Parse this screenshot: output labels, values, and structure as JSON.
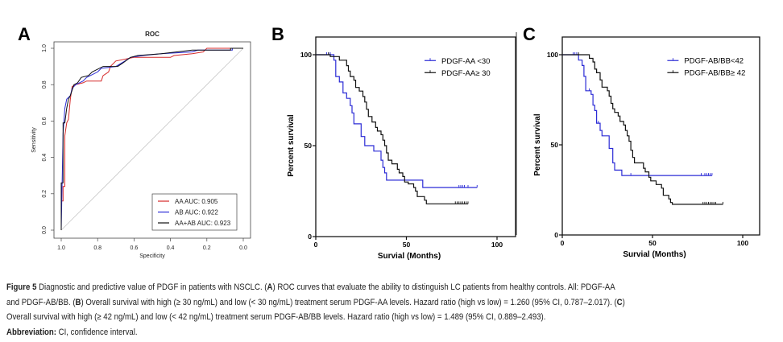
{
  "panels": {
    "A": {
      "letter": "A"
    },
    "B": {
      "letter": "B"
    },
    "C": {
      "letter": "C"
    }
  },
  "colors": {
    "red": "#d62a2a",
    "blue": "#2b2bd6",
    "black": "#111111",
    "diag": "#c8c8c8"
  },
  "chart_data": [
    {
      "type": "line",
      "title": "ROC",
      "xlabel": "Specificity",
      "ylabel": "Sensitivity",
      "xlim": [
        1.0,
        0.0
      ],
      "ylim": [
        0.0,
        1.0
      ],
      "xticks": [
        "1.0",
        "0.8",
        "0.6",
        "0.4",
        "0.2",
        "0.0"
      ],
      "yticks": [
        "0.0",
        "0.2",
        "0.4",
        "0.6",
        "0.8",
        "1.0"
      ],
      "legend_position": "bottom-right",
      "series": [
        {
          "name": "AA AUC: 0.905",
          "color": "#d62a2a",
          "points": [
            [
              1,
              0
            ],
            [
              1,
              0.16
            ],
            [
              0.99,
              0.16
            ],
            [
              0.99,
              0.24
            ],
            [
              0.98,
              0.24
            ],
            [
              0.98,
              0.52
            ],
            [
              0.97,
              0.59
            ],
            [
              0.96,
              0.61
            ],
            [
              0.95,
              0.72
            ],
            [
              0.94,
              0.79
            ],
            [
              0.92,
              0.8
            ],
            [
              0.88,
              0.81
            ],
            [
              0.86,
              0.82
            ],
            [
              0.78,
              0.82
            ],
            [
              0.77,
              0.85
            ],
            [
              0.74,
              0.87
            ],
            [
              0.73,
              0.9
            ],
            [
              0.7,
              0.93
            ],
            [
              0.6,
              0.95
            ],
            [
              0.4,
              0.95
            ],
            [
              0.38,
              0.96
            ],
            [
              0.28,
              0.97
            ],
            [
              0.22,
              0.98
            ],
            [
              0.2,
              1.0
            ],
            [
              0,
              1.0
            ]
          ]
        },
        {
          "name": "AB AUC: 0.922",
          "color": "#2b2bd6",
          "points": [
            [
              1,
              0
            ],
            [
              0.99,
              0.53
            ],
            [
              0.98,
              0.67
            ],
            [
              0.97,
              0.72
            ],
            [
              0.95,
              0.74
            ],
            [
              0.94,
              0.78
            ],
            [
              0.92,
              0.8
            ],
            [
              0.88,
              0.82
            ],
            [
              0.86,
              0.84
            ],
            [
              0.8,
              0.87
            ],
            [
              0.78,
              0.89
            ],
            [
              0.7,
              0.9
            ],
            [
              0.65,
              0.93
            ],
            [
              0.62,
              0.95
            ],
            [
              0.55,
              0.96
            ],
            [
              0.45,
              0.97
            ],
            [
              0.28,
              0.98
            ],
            [
              0.25,
              0.99
            ],
            [
              0.06,
              0.99
            ],
            [
              0.06,
              1.0
            ],
            [
              0,
              1.0
            ]
          ]
        },
        {
          "name": "AA+AB AUC: 0.923",
          "color": "#111111",
          "points": [
            [
              1,
              0
            ],
            [
              1,
              0.26
            ],
            [
              0.99,
              0.26
            ],
            [
              0.99,
              0.59
            ],
            [
              0.98,
              0.59
            ],
            [
              0.97,
              0.67
            ],
            [
              0.96,
              0.72
            ],
            [
              0.95,
              0.74
            ],
            [
              0.93,
              0.8
            ],
            [
              0.91,
              0.81
            ],
            [
              0.89,
              0.84
            ],
            [
              0.85,
              0.85
            ],
            [
              0.83,
              0.87
            ],
            [
              0.77,
              0.9
            ],
            [
              0.69,
              0.9
            ],
            [
              0.66,
              0.92
            ],
            [
              0.62,
              0.95
            ],
            [
              0.58,
              0.96
            ],
            [
              0.45,
              0.97
            ],
            [
              0.28,
              0.99
            ],
            [
              0.07,
              0.99
            ],
            [
              0.07,
              1.0
            ],
            [
              0,
              1.0
            ]
          ]
        }
      ]
    },
    {
      "type": "line",
      "title": "",
      "xlabel": "Survial (Months)",
      "ylabel": "Percent survival",
      "xlim": [
        0,
        100
      ],
      "ylim": [
        0,
        100
      ],
      "xticks": [
        "0",
        "50",
        "100"
      ],
      "yticks": [
        "0",
        "50",
        "100"
      ],
      "legend_position": "top-right",
      "series": [
        {
          "name": "PDGF-AA  <30",
          "color": "#2b2bd6",
          "steps": [
            [
              0,
              100
            ],
            [
              10,
              97
            ],
            [
              11,
              88
            ],
            [
              13,
              85
            ],
            [
              15,
              79
            ],
            [
              17,
              76
            ],
            [
              19,
              72
            ],
            [
              20,
              68
            ],
            [
              21,
              62
            ],
            [
              25,
              55
            ],
            [
              27,
              50
            ],
            [
              32,
              47
            ],
            [
              36,
              42
            ],
            [
              37,
              38
            ],
            [
              38,
              35
            ],
            [
              39,
              31
            ],
            [
              59,
              27
            ]
          ],
          "end": 89,
          "censored": [
            6,
            7,
            8,
            79,
            80,
            81,
            82,
            84,
            89
          ]
        },
        {
          "name": "PDGF-AA≥ 30",
          "color": "#111111",
          "steps": [
            [
              0,
              100
            ],
            [
              8,
              99
            ],
            [
              13,
              97
            ],
            [
              17,
              94
            ],
            [
              18,
              91
            ],
            [
              19,
              88
            ],
            [
              21,
              86
            ],
            [
              22,
              82
            ],
            [
              24,
              80
            ],
            [
              26,
              77
            ],
            [
              27,
              74
            ],
            [
              28,
              70
            ],
            [
              29,
              66
            ],
            [
              31,
              63
            ],
            [
              33,
              60
            ],
            [
              34,
              58
            ],
            [
              36,
              56
            ],
            [
              37,
              53
            ],
            [
              38,
              50
            ],
            [
              39,
              46
            ],
            [
              40,
              42
            ],
            [
              42,
              40
            ],
            [
              45,
              37
            ],
            [
              46,
              35
            ],
            [
              48,
              33
            ],
            [
              49,
              30
            ],
            [
              51,
              29
            ],
            [
              54,
              27
            ],
            [
              55,
              25
            ],
            [
              56,
              22
            ],
            [
              60,
              20
            ],
            [
              61,
              18
            ]
          ],
          "end": 84,
          "censored": [
            7,
            77,
            78,
            79,
            80,
            81,
            82,
            83,
            84
          ]
        }
      ]
    },
    {
      "type": "line",
      "title": "",
      "xlabel": "Survial (Months)",
      "ylabel": "Percent survival",
      "xlim": [
        0,
        100
      ],
      "ylim": [
        0,
        100
      ],
      "xticks": [
        "0",
        "50",
        "100"
      ],
      "yticks": [
        "0",
        "50",
        "100"
      ],
      "legend_position": "top-right",
      "series": [
        {
          "name": "PDGF-AB/BB<42",
          "color": "#2b2bd6",
          "steps": [
            [
              0,
              100
            ],
            [
              9,
              97
            ],
            [
              11,
              94
            ],
            [
              12,
              88
            ],
            [
              13,
              80
            ],
            [
              16,
              78
            ],
            [
              17,
              72
            ],
            [
              18,
              69
            ],
            [
              19,
              62
            ],
            [
              21,
              58
            ],
            [
              22,
              55
            ],
            [
              26,
              48
            ],
            [
              28,
              40
            ],
            [
              29,
              36
            ],
            [
              33,
              33
            ]
          ],
          "end": 83,
          "censored": [
            6,
            7,
            8,
            15,
            20,
            38,
            77,
            79,
            80,
            81,
            82,
            83
          ]
        },
        {
          "name": "PDGF-AB/BB≥ 42",
          "color": "#111111",
          "steps": [
            [
              0,
              100
            ],
            [
              15,
              98
            ],
            [
              17,
              96
            ],
            [
              18,
              92
            ],
            [
              19,
              90
            ],
            [
              21,
              86
            ],
            [
              22,
              82
            ],
            [
              25,
              80
            ],
            [
              26,
              77
            ],
            [
              27,
              73
            ],
            [
              28,
              70
            ],
            [
              29,
              68
            ],
            [
              31,
              66
            ],
            [
              32,
              63
            ],
            [
              34,
              61
            ],
            [
              35,
              58
            ],
            [
              36,
              55
            ],
            [
              37,
              52
            ],
            [
              38,
              47
            ],
            [
              39,
              43
            ],
            [
              40,
              40
            ],
            [
              45,
              37
            ],
            [
              46,
              35
            ],
            [
              48,
              32
            ],
            [
              49,
              30
            ],
            [
              52,
              28
            ],
            [
              55,
              26
            ],
            [
              56,
              22
            ],
            [
              59,
              20
            ],
            [
              60,
              18
            ],
            [
              61,
              17
            ]
          ],
          "end": 89,
          "censored": [
            9,
            78,
            79,
            80,
            81,
            82,
            83,
            84,
            85,
            89
          ]
        }
      ]
    }
  ],
  "caption": {
    "lines": [
      [
        {
          "text": "Figure 5",
          "bold": true
        },
        {
          "text": " Diagnostic and predictive value of PDGF in patients with NSCLC. (",
          "bold": false
        },
        {
          "text": "A",
          "bold": true
        },
        {
          "text": ") ROC curves that evaluate the ability to distinguish LC patients from healthy controls. All: PDGF-AA",
          "bold": false
        }
      ],
      [
        {
          "text": "and PDGF-AB/BB. (",
          "bold": false
        },
        {
          "text": "B",
          "bold": true
        },
        {
          "text": ") Overall survival with high (≥ 30 ng/mL) and low (< 30 ng/mL) treatment serum PDGF-AA levels. Hazard ratio (high vs low) = 1.260 (95% CI, 0.787–2.017). (",
          "bold": false
        },
        {
          "text": "C",
          "bold": true
        },
        {
          "text": ")",
          "bold": false
        }
      ],
      [
        {
          "text": "Overall survival with high (≥ 42 ng/mL) and low (< 42 ng/mL) treatment serum PDGF-AB/BB levels. Hazard ratio (high vs low) = 1.489 (95% CI, 0.889–2.493).",
          "bold": false
        }
      ],
      [
        {
          "text": "Abbreviation:",
          "bold": true
        },
        {
          "text": " CI, confidence interval.",
          "bold": false
        }
      ]
    ]
  }
}
